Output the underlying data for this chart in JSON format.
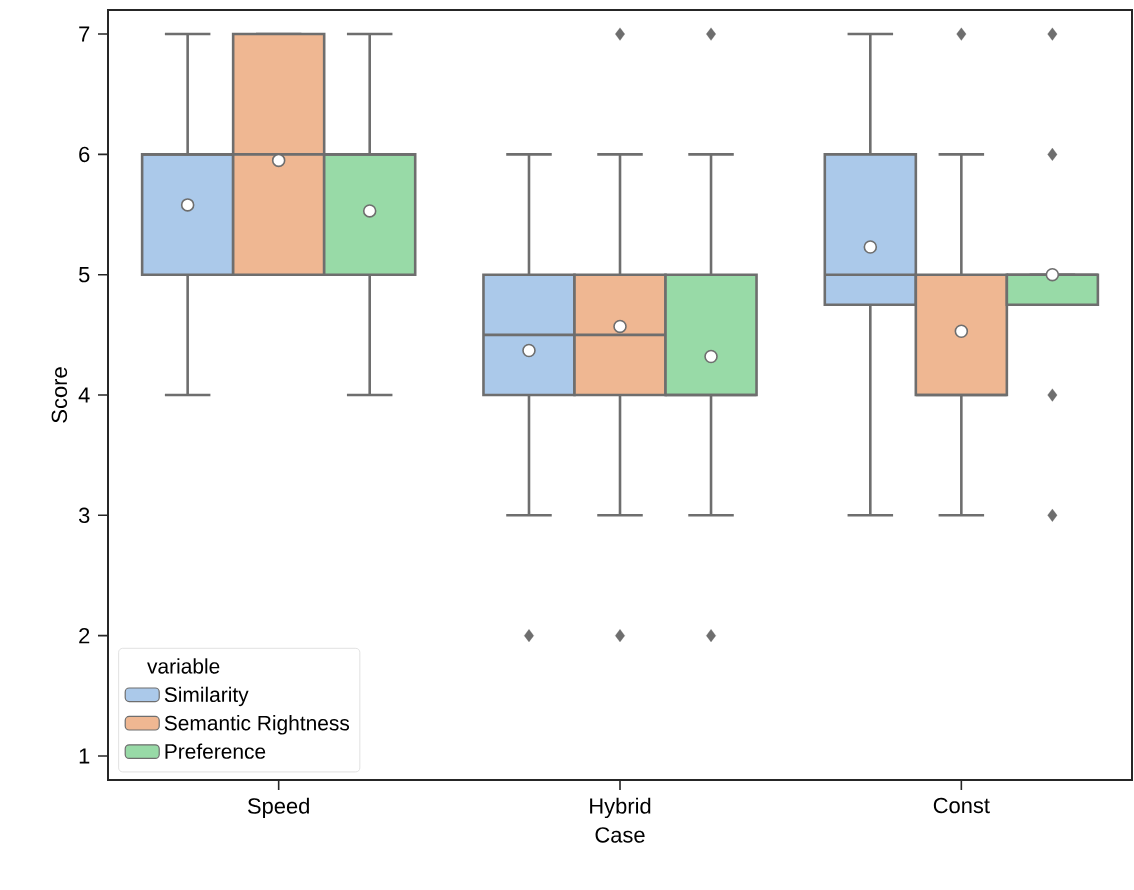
{
  "chart_data": {
    "type": "box",
    "xlabel": "Case",
    "ylabel": "Score",
    "legend_title": "variable",
    "categories": [
      "Speed",
      "Hybrid",
      "Const"
    ],
    "ylim": [
      0.8,
      7.2
    ],
    "yticks": [
      1,
      2,
      3,
      4,
      5,
      6,
      7
    ],
    "grid": false,
    "legend": "bottom left",
    "series": [
      {
        "name": "Similarity",
        "color": "#abc9ea",
        "boxes": [
          {
            "low": 4,
            "q1": 5,
            "median": 6,
            "q3": 6,
            "high": 7,
            "mean": 5.58
          },
          {
            "low": 3,
            "q1": 4,
            "median": 4.5,
            "q3": 5,
            "high": 6,
            "mean": 4.37,
            "outliers": [
              2
            ]
          },
          {
            "low": 3,
            "q1": 4.75,
            "median": 5,
            "q3": 6,
            "high": 7,
            "mean": 5.23
          }
        ]
      },
      {
        "name": "Semantic Rightness",
        "color": "#efb792",
        "boxes": [
          {
            "low": 5,
            "q1": 5,
            "median": 6,
            "q3": 7,
            "high": 7,
            "mean": 5.95
          },
          {
            "low": 3,
            "q1": 4,
            "median": 4.5,
            "q3": 5,
            "high": 6,
            "mean": 4.57,
            "outliers": [
              2,
              7
            ]
          },
          {
            "low": 3,
            "q1": 4,
            "median": 4,
            "q3": 5,
            "high": 6,
            "mean": 4.53,
            "outliers": [
              7
            ]
          }
        ]
      },
      {
        "name": "Preference",
        "color": "#98daa7",
        "boxes": [
          {
            "low": 4,
            "q1": 5,
            "median": 6,
            "q3": 6,
            "high": 7,
            "mean": 5.53
          },
          {
            "low": 3,
            "q1": 4,
            "median": 4,
            "q3": 5,
            "high": 6,
            "mean": 4.32,
            "outliers": [
              2,
              7
            ]
          },
          {
            "low": 4.75,
            "q1": 4.75,
            "median": 5,
            "q3": 5,
            "high": 5,
            "mean": 5.0,
            "outliers": [
              3,
              4,
              6,
              7
            ]
          }
        ]
      }
    ]
  }
}
